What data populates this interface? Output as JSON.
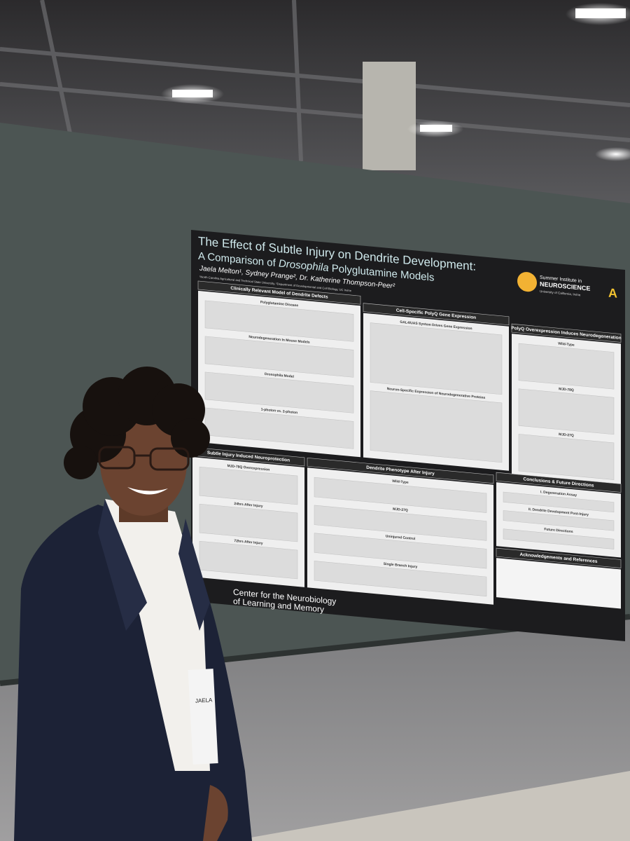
{
  "poster": {
    "title": "The Effect of Subtle Injury on Dendrite Development:",
    "subtitle_prefix": "A Comparison of ",
    "subtitle_species": "Drosophila",
    "subtitle_suffix": " Polyglutamine Models",
    "authors": "Jaela Melton¹, Sydney Prange², Dr. Katherine Thompson-Peer²",
    "affiliations": "¹North Carolina Agricultural and Technical State University, ²Department of Developmental and Cell Biology, UC Irvine",
    "logo": {
      "line1": "Summer Institute in",
      "line2": "NEUROSCIENCE",
      "line3": "University of California, Irvine"
    },
    "sections": [
      {
        "header": "Clinically Relevant Model of Dendrite Defects",
        "items": [
          "Polyglutamine Disease",
          "Neurodegeneration In Mouse Models",
          "Drosophila Model",
          "1-photon vs. 2-photon"
        ]
      },
      {
        "header": "Cell-Specific PolyQ Gene Expression",
        "items": [
          "GAL4/UAS System Drives Gene Expression",
          "Neuron-Specific Expression of Neurodegenerative Proteins"
        ]
      },
      {
        "header": "PolyQ Overexpression Induces Neurodegeneration",
        "items": [
          "Wild-Type",
          "MJD-78Q",
          "MJD-27Q"
        ]
      },
      {
        "header": "Subtle Injury Induced Neuroprotection",
        "items": [
          "MJD-78Q Overexpression",
          "24hrs After Injury",
          "72hrs After Injury"
        ]
      },
      {
        "header": "Dendrite Phenotype After Injury",
        "items": [
          "Wild-Type",
          "MJD-27Q",
          "Uninjured Control",
          "Single Branch Injury"
        ]
      },
      {
        "header": "Conclusions & Future Directions",
        "items": [
          "I. Degeneration Assay",
          "II. Dendrite Development Post-Injury",
          "Future Directions"
        ]
      },
      {
        "header": "Acknowledgements and References",
        "items": []
      }
    ],
    "footer": [
      "Center for the Neurobiology",
      "of Learning and Memory"
    ]
  },
  "badge": "JAELA"
}
